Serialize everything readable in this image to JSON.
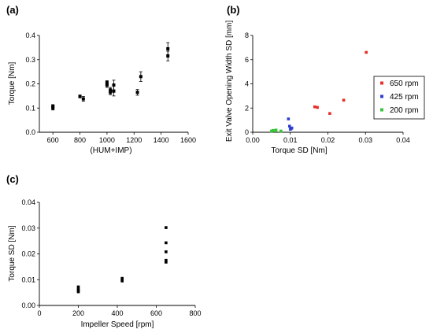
{
  "chart_data": [
    {
      "panel": "(a)",
      "type": "scatter",
      "xlabel": "(HUM+IMP)",
      "ylabel": "Torque [Nm]",
      "xlim": [
        500,
        1600
      ],
      "ylim": [
        0,
        0.4
      ],
      "xticks": [
        600,
        800,
        1000,
        1200,
        1400,
        1600
      ],
      "yticks": [
        0,
        0.1,
        0.2,
        0.3,
        0.4
      ],
      "ytick_labels": [
        "0.0",
        "0.1",
        "0.2",
        "0.3",
        "0.4"
      ],
      "grid": false,
      "series": [
        {
          "color": "#000000",
          "points": [
            {
              "x": 600,
              "y": 0.1,
              "err": 0.008
            },
            {
              "x": 600,
              "y": 0.108,
              "err": 0.006
            },
            {
              "x": 800,
              "y": 0.148,
              "err": 0.006
            },
            {
              "x": 825,
              "y": 0.138,
              "err": 0.01
            },
            {
              "x": 1000,
              "y": 0.195,
              "err": 0.01
            },
            {
              "x": 1000,
              "y": 0.205,
              "err": 0.008
            },
            {
              "x": 1025,
              "y": 0.175,
              "err": 0.01
            },
            {
              "x": 1025,
              "y": 0.165,
              "err": 0.01
            },
            {
              "x": 1050,
              "y": 0.17,
              "err": 0.02
            },
            {
              "x": 1050,
              "y": 0.195,
              "err": 0.02
            },
            {
              "x": 1225,
              "y": 0.165,
              "err": 0.012
            },
            {
              "x": 1250,
              "y": 0.23,
              "err": 0.02
            },
            {
              "x": 1450,
              "y": 0.345,
              "err": 0.025
            },
            {
              "x": 1450,
              "y": 0.315,
              "err": 0.02
            }
          ]
        }
      ]
    },
    {
      "panel": "(b)",
      "type": "scatter",
      "xlabel": "Torque SD [Nm]",
      "ylabel": "Exit Valve Opening Width SD [mm]",
      "xlim": [
        0,
        0.04
      ],
      "ylim": [
        0,
        8
      ],
      "xticks": [
        0,
        0.01,
        0.02,
        0.03,
        0.04
      ],
      "xtick_labels": [
        "0.00",
        "0.01",
        "0.02",
        "0.03",
        "0.04"
      ],
      "yticks": [
        0,
        2,
        4,
        6,
        8
      ],
      "grid": false,
      "legend_position": "right",
      "series": [
        {
          "name": "650 rpm",
          "color": "#e8302a",
          "x": [
            0.0165,
            0.0172,
            0.0205,
            0.0242,
            0.0302
          ],
          "y": [
            2.1,
            2.05,
            1.55,
            2.65,
            6.6
          ]
        },
        {
          "name": "425 rpm",
          "color": "#2f3fd0",
          "x": [
            0.0095,
            0.0098,
            0.01,
            0.0102,
            0.0104
          ],
          "y": [
            1.1,
            0.5,
            0.25,
            0.3,
            0.35
          ]
        },
        {
          "name": "200 rpm",
          "color": "#3ac43a",
          "x": [
            0.005,
            0.0054,
            0.0058,
            0.0062,
            0.0075
          ],
          "y": [
            0.1,
            0.15,
            0.12,
            0.18,
            0.1
          ]
        }
      ]
    },
    {
      "panel": "(c)",
      "type": "scatter",
      "xlabel": "Impeller Speed [rpm]",
      "ylabel": "Torque SD [Nm]",
      "xlim": [
        0,
        800
      ],
      "ylim": [
        0,
        0.04
      ],
      "xticks": [
        0,
        200,
        400,
        600,
        800
      ],
      "yticks": [
        0,
        0.01,
        0.02,
        0.03,
        0.04
      ],
      "ytick_labels": [
        "0.00",
        "0.01",
        "0.02",
        "0.03",
        "0.04"
      ],
      "grid": false,
      "series": [
        {
          "color": "#000000",
          "x": [
            200,
            200,
            200,
            200,
            425,
            425,
            425,
            650,
            650,
            650,
            650,
            650
          ],
          "y": [
            0.0053,
            0.0058,
            0.0063,
            0.0072,
            0.0095,
            0.01,
            0.0105,
            0.0168,
            0.0175,
            0.0208,
            0.0243,
            0.0302
          ]
        }
      ]
    }
  ]
}
